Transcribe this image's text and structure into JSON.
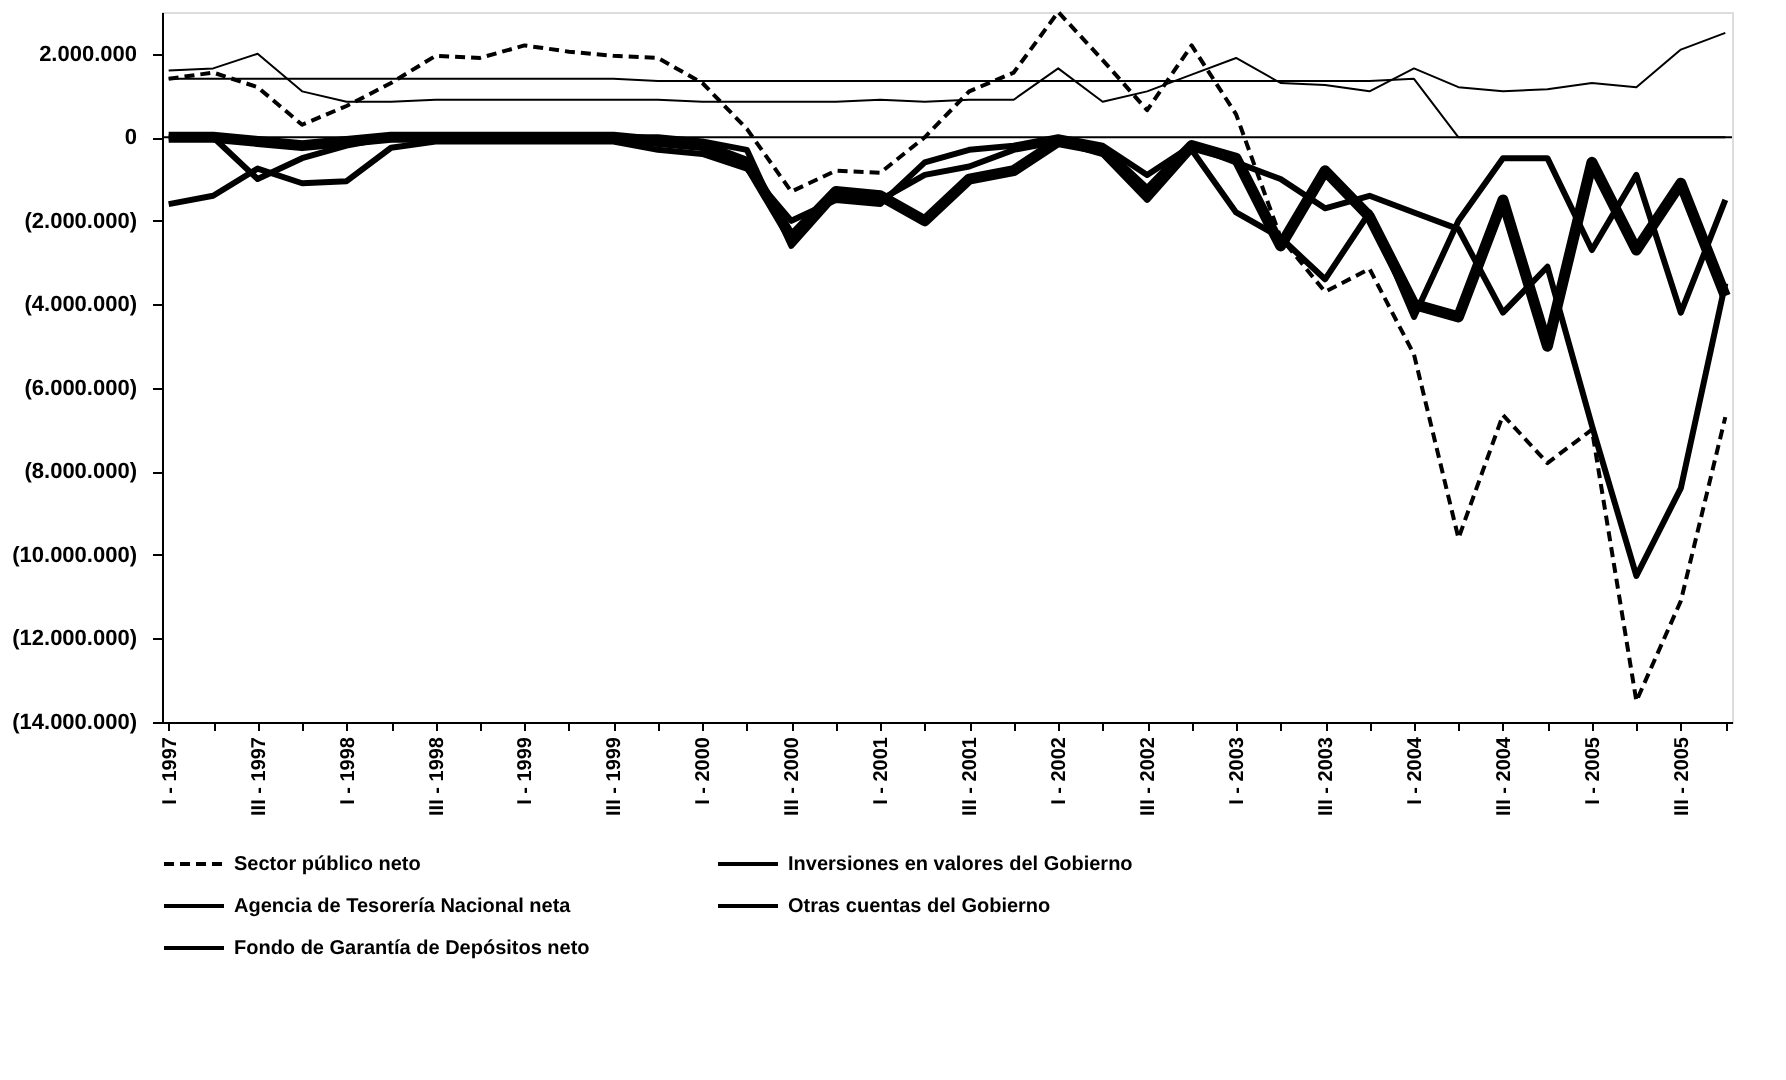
{
  "chart_data": {
    "type": "line",
    "categories": [
      "I - 1997",
      null,
      "III - 1997",
      null,
      "I - 1998",
      null,
      "III - 1998",
      null,
      "I - 1999",
      null,
      "III - 1999",
      null,
      "I - 2000",
      null,
      "III - 2000",
      null,
      "I - 2001",
      null,
      "III - 2001",
      null,
      "I - 2002",
      null,
      "III - 2002",
      null,
      "I - 2003",
      null,
      "III - 2003",
      null,
      "I - 2004",
      null,
      "III - 2004",
      null,
      "I - 2005",
      null,
      "III - 2005",
      null
    ],
    "series": [
      {
        "name": "Sector público neto",
        "color": "#000000",
        "line_style": "dashed",
        "values": [
          1400000,
          1550000,
          1200000,
          300000,
          750000,
          1300000,
          1950000,
          1900000,
          2200000,
          2050000,
          1950000,
          1900000,
          1300000,
          200000,
          -1300000,
          -800000,
          -850000,
          0,
          1100000,
          1550000,
          3000000,
          1850000,
          650000,
          2200000,
          550000,
          -2400000,
          -3700000,
          -3150000,
          -5200000,
          -9600000,
          -6650000,
          -7800000,
          -7000000,
          -13500000,
          -11100000,
          -6700000
        ]
      },
      {
        "name": "Inversiones en valores del Gobierno",
        "color": "#000000",
        "line_style": "solid",
        "values": [
          1600000,
          1650000,
          2000000,
          1100000,
          850000,
          850000,
          900000,
          900000,
          900000,
          900000,
          900000,
          900000,
          850000,
          850000,
          850000,
          850000,
          900000,
          850000,
          900000,
          900000,
          1650000,
          850000,
          1100000,
          1500000,
          1900000,
          1300000,
          1250000,
          1100000,
          1650000,
          1200000,
          1100000,
          1150000,
          1300000,
          1200000,
          2100000,
          2500000
        ]
      },
      {
        "name": null,
        "color": "#000000",
        "line_style": "solid",
        "values": [
          0,
          0,
          -1000000,
          -500000,
          -200000,
          0,
          0,
          0,
          0,
          0,
          0,
          0,
          -100000,
          -300000,
          -2600000,
          -1400000,
          -1500000,
          -900000,
          -700000,
          -300000,
          -100000,
          -400000,
          -1500000,
          -300000,
          -1800000,
          -2400000,
          -3400000,
          -1800000,
          -4300000,
          -2000000,
          -500000,
          -500000,
          -2700000,
          -900000,
          -4200000,
          -1500000
        ]
      },
      {
        "name": "Agencia de Tesorería Nacional neta",
        "color": "#000000",
        "line_style": "solid",
        "values": [
          -1600000,
          -1400000,
          -750000,
          -1100000,
          -1050000,
          -250000,
          -100000,
          -100000,
          -100000,
          -100000,
          -100000,
          -300000,
          -400000,
          -750000,
          -2000000,
          -1500000,
          -1600000,
          -600000,
          -300000,
          -200000,
          0,
          -200000,
          -900000,
          -200000,
          -600000,
          -1000000,
          -1700000,
          -1400000,
          -1800000,
          -2200000,
          -4200000,
          -3100000,
          -6900000,
          -10500000,
          -8400000,
          -3500000
        ]
      },
      {
        "name": "Otras cuentas del Gobierno",
        "color": "#000000",
        "line_style": "solid",
        "values": [
          0,
          0,
          -100000,
          -200000,
          -100000,
          0,
          0,
          0,
          0,
          0,
          0,
          -100000,
          -200000,
          -600000,
          -2400000,
          -1300000,
          -1400000,
          -2000000,
          -1000000,
          -800000,
          -100000,
          -300000,
          -1300000,
          -200000,
          -500000,
          -2600000,
          -800000,
          -1900000,
          -4000000,
          -4300000,
          -1500000,
          -5000000,
          -600000,
          -2700000,
          -1100000,
          -3800000
        ]
      },
      {
        "name": "Fondo de Garantía de Depósitos neto",
        "color": "#000000",
        "line_style": "solid",
        "values": [
          1400000,
          1400000,
          1400000,
          1400000,
          1400000,
          1400000,
          1400000,
          1400000,
          1400000,
          1400000,
          1400000,
          1350000,
          1350000,
          1350000,
          1350000,
          1350000,
          1350000,
          1350000,
          1350000,
          1350000,
          1350000,
          1350000,
          1350000,
          1350000,
          1350000,
          1350000,
          1350000,
          1350000,
          1400000,
          0,
          0,
          0,
          0,
          0,
          0,
          0
        ]
      }
    ],
    "ylim": [
      -14000000,
      3000000
    ],
    "yticks": [
      {
        "value": 2000000,
        "label": "2.000.000"
      },
      0,
      {
        "value": -2000000,
        "label": "(2.000.000)"
      },
      {
        "value": -4000000,
        "label": "(4.000.000)"
      },
      {
        "value": -6000000,
        "label": "(6.000.000)"
      },
      {
        "value": -8000000,
        "label": "(8.000.000)"
      },
      {
        "value": -10000000,
        "label": "(10.000.000)"
      },
      {
        "value": -12000000,
        "label": "(12.000.000)"
      },
      {
        "value": -14000000,
        "label": "(14.000.000)"
      }
    ],
    "ref_lines": [
      {
        "axis": "y",
        "value": 0,
        "color": "#000000"
      }
    ],
    "grid": false,
    "legend": "bottom"
  }
}
